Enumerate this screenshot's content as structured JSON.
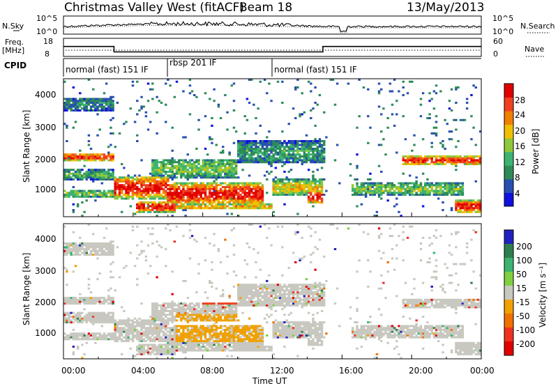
{
  "header": {
    "station": "Christmas Valley West (fitACF)",
    "beam": "Beam 18",
    "date": "13/May/2013"
  },
  "noise_panel": {
    "label": "N.Sky",
    "right_label": "N.Search",
    "ticks_left": [
      "10^5",
      "10^0"
    ],
    "ticks_right": [
      "10^5",
      "10^0"
    ]
  },
  "freq_panel": {
    "label_line1": "Freq.",
    "label_line2": "[MHz]",
    "ticks_left": [
      "18",
      "8"
    ],
    "right_label": "Nave",
    "ticks_right": [
      "60",
      "0"
    ]
  },
  "cpid": {
    "label": "CPID",
    "segments": [
      {
        "name": "normal (fast) 151 IF",
        "start_hour": 0,
        "end_hour": 6
      },
      {
        "name": "rbsp 201 IF",
        "start_hour": 6,
        "end_hour": 12
      },
      {
        "name": "normal (fast) 151 IF",
        "start_hour": 12,
        "end_hour": 24
      }
    ]
  },
  "power_panel": {
    "ylabel": "Slant Range [km]",
    "yticks": [
      "1000",
      "2000",
      "3000",
      "4000"
    ],
    "colorbar_label": "Power [dB]",
    "colorbar_ticks": [
      "4",
      "8",
      "12",
      "16",
      "20",
      "24",
      "28"
    ],
    "colors": [
      "#1010e0",
      "#2850b0",
      "#2e8b57",
      "#3cb371",
      "#8fc83c",
      "#f0c000",
      "#f08000",
      "#f04020",
      "#e00000"
    ]
  },
  "velocity_panel": {
    "ylabel": "Slant Range [km]",
    "yticks": [
      "1000",
      "2000",
      "3000",
      "4000"
    ],
    "colorbar_label": "Velocity [m s⁻¹]",
    "colorbar_ticks": [
      "200",
      "100",
      "50",
      "15",
      "-15",
      "-50",
      "-100",
      "-200"
    ],
    "colors": [
      "#2020c0",
      "#2e7d4f",
      "#3cb371",
      "#7fd040",
      "#c8c8c0",
      "#f0a000",
      "#f07000",
      "#f03020",
      "#e00000"
    ]
  },
  "xaxis": {
    "label": "Time UT",
    "ticks": [
      "00:00",
      "04:00",
      "08:00",
      "12:00",
      "16:00",
      "20:00",
      "00:00"
    ]
  },
  "chart_data": {
    "type": "heatmap",
    "title": "Christmas Valley West (fitACF) Beam 18 13/May/2013",
    "xlabel": "Time UT",
    "ylabel": "Slant Range [km]",
    "xlim": [
      0,
      24
    ],
    "ylim": [
      180,
      4500
    ],
    "grid": false,
    "series": [
      {
        "name": "Power [dB]",
        "clim": [
          0,
          30
        ]
      },
      {
        "name": "Velocity [m s⁻¹]",
        "clim": [
          -200,
          200
        ]
      }
    ],
    "frequency_MHz": [
      {
        "start_hour": 0,
        "end_hour": 2.9,
        "value": 13.5
      },
      {
        "start_hour": 2.9,
        "end_hour": 14.9,
        "value": 10.5
      },
      {
        "start_hour": 14.9,
        "end_hour": 24,
        "value": 13.5
      }
    ],
    "power_features": [
      {
        "start_hour": 0.0,
        "end_hour": 2.9,
        "range_km": 2050,
        "width_km": 250,
        "power_db": 26
      },
      {
        "start_hour": 0.0,
        "end_hour": 2.9,
        "range_km": 1500,
        "width_km": 300,
        "power_db": 12
      },
      {
        "start_hour": 0.0,
        "end_hour": 2.9,
        "range_km": 900,
        "width_km": 250,
        "power_db": 14
      },
      {
        "start_hour": 0.0,
        "end_hour": 2.9,
        "range_km": 3700,
        "width_km": 400,
        "power_db": 8
      },
      {
        "start_hour": 2.9,
        "end_hour": 6.0,
        "range_km": 1100,
        "width_km": 700,
        "power_db": 28
      },
      {
        "start_hour": 4.2,
        "end_hour": 6.5,
        "range_km": 500,
        "width_km": 350,
        "power_db": 28
      },
      {
        "start_hour": 5.0,
        "end_hour": 10.0,
        "range_km": 1700,
        "width_km": 600,
        "power_db": 14
      },
      {
        "start_hour": 6.0,
        "end_hour": 11.5,
        "range_km": 900,
        "width_km": 700,
        "power_db": 28
      },
      {
        "start_hour": 6.0,
        "end_hour": 12.0,
        "range_km": 500,
        "width_km": 200,
        "power_db": 20
      },
      {
        "start_hour": 10.0,
        "end_hour": 15.0,
        "range_km": 2200,
        "width_km": 700,
        "power_db": 10
      },
      {
        "start_hour": 12.0,
        "end_hour": 14.9,
        "range_km": 1100,
        "width_km": 500,
        "power_db": 18
      },
      {
        "start_hour": 14.0,
        "end_hour": 14.9,
        "range_km": 800,
        "width_km": 400,
        "power_db": 28
      },
      {
        "start_hour": 16.5,
        "end_hour": 23.0,
        "range_km": 1050,
        "width_km": 400,
        "power_db": 14
      },
      {
        "start_hour": 19.5,
        "end_hour": 24.0,
        "range_km": 1950,
        "width_km": 300,
        "power_db": 26
      },
      {
        "start_hour": 22.5,
        "end_hour": 24.0,
        "range_km": 500,
        "width_km": 400,
        "power_db": 28
      }
    ]
  }
}
